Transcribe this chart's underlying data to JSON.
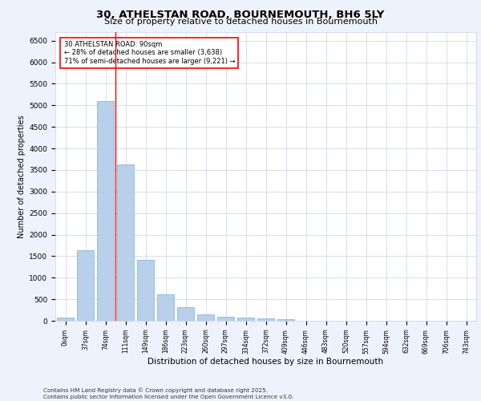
{
  "title_line1": "30, ATHELSTAN ROAD, BOURNEMOUTH, BH6 5LY",
  "title_line2": "Size of property relative to detached houses in Bournemouth",
  "xlabel": "Distribution of detached houses by size in Bournemouth",
  "ylabel": "Number of detached properties",
  "footer": "Contains HM Land Registry data © Crown copyright and database right 2025.\nContains public sector information licensed under the Open Government Licence v3.0.",
  "bar_labels": [
    "0sqm",
    "37sqm",
    "74sqm",
    "111sqm",
    "149sqm",
    "186sqm",
    "223sqm",
    "260sqm",
    "297sqm",
    "334sqm",
    "372sqm",
    "409sqm",
    "446sqm",
    "483sqm",
    "520sqm",
    "557sqm",
    "594sqm",
    "632sqm",
    "669sqm",
    "706sqm",
    "743sqm"
  ],
  "bar_values": [
    75,
    1640,
    5100,
    3620,
    1420,
    615,
    310,
    155,
    95,
    70,
    55,
    35,
    0,
    0,
    0,
    0,
    0,
    0,
    0,
    0,
    0
  ],
  "bar_color": "#b8d0ea",
  "bar_edge_color": "#7aafd4",
  "ylim": [
    0,
    6700
  ],
  "yticks": [
    0,
    500,
    1000,
    1500,
    2000,
    2500,
    3000,
    3500,
    4000,
    4500,
    5000,
    5500,
    6000,
    6500
  ],
  "property_line_x": 2.5,
  "property_line_color": "red",
  "annotation_text": "30 ATHELSTAN ROAD: 90sqm\n← 28% of detached houses are smaller (3,638)\n71% of semi-detached houses are larger (9,221) →",
  "annotation_box_color": "white",
  "annotation_box_edge": "red",
  "bg_color": "#eef2fc",
  "plot_bg_color": "white",
  "grid_color": "#c8d0e8"
}
